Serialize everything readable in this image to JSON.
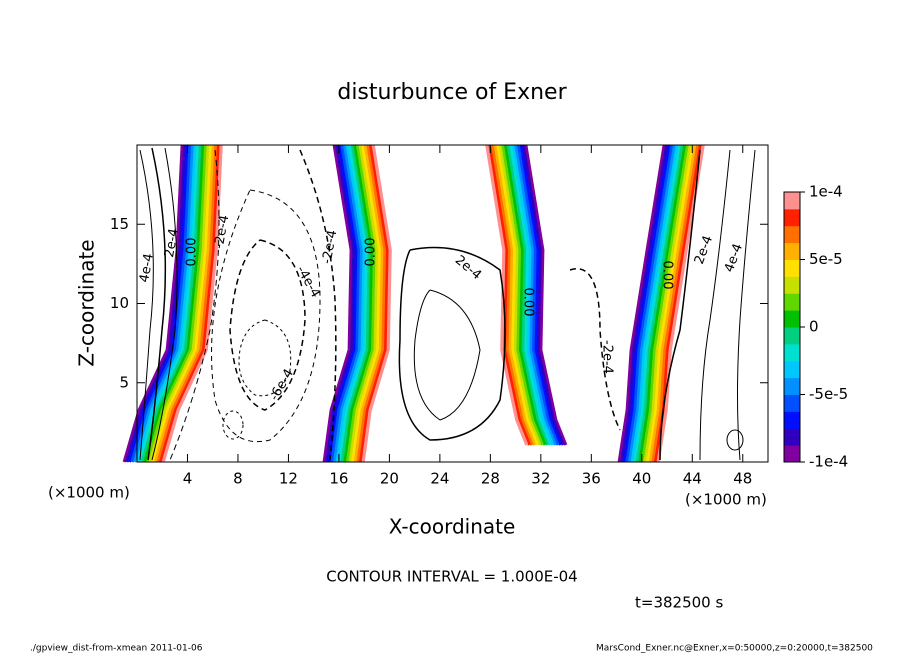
{
  "chart_data": {
    "type": "contour",
    "title": "disturbunce of Exner",
    "xlabel": "X-coordinate",
    "ylabel": "Z-coordinate",
    "x_unit": "(×1000 m)",
    "xlim": [
      0,
      50
    ],
    "xticks": [
      4,
      8,
      12,
      16,
      20,
      24,
      28,
      32,
      36,
      40,
      44,
      48
    ],
    "ylim": [
      0,
      20
    ],
    "yticks": [
      5,
      10,
      15
    ],
    "colorbar": {
      "lim": [
        -0.0001,
        0.0001
      ],
      "ticks": [
        {
          "value": 0.0001,
          "label": "1e-4"
        },
        {
          "value": 5e-05,
          "label": "5e-5"
        },
        0,
        {
          "value": -5e-05,
          "label": "-5e-5"
        },
        {
          "value": -0.0001,
          "label": "-1e-4"
        }
      ],
      "colors": [
        "#8000a0",
        "#3000c0",
        "#0010ff",
        "#0050ff",
        "#0090ff",
        "#00c8ff",
        "#00e0d0",
        "#00d080",
        "#00c000",
        "#60d800",
        "#c8e000",
        "#ffe000",
        "#ffb000",
        "#ff7000",
        "#ff2000",
        "#ff9090"
      ]
    },
    "contour_labels": [
      "4e-4",
      "2e-4",
      "0.00",
      "-2e-4",
      "0.00",
      "-2e-4",
      "-4e-4",
      "-6e-4",
      "2e-4",
      "0.00",
      "-2e-4",
      "0.00",
      "2e-4",
      "4e-4"
    ],
    "contour_interval": "CONTOUR INTERVAL = 1.000E-04",
    "time": "t=382500 s",
    "footer_left": "./gpview_dist-from-xmean  2011-01-06",
    "footer_right": "MarsCond_Exner.nc@Exner,x=0:50000,z=0:20000,t=382500"
  }
}
